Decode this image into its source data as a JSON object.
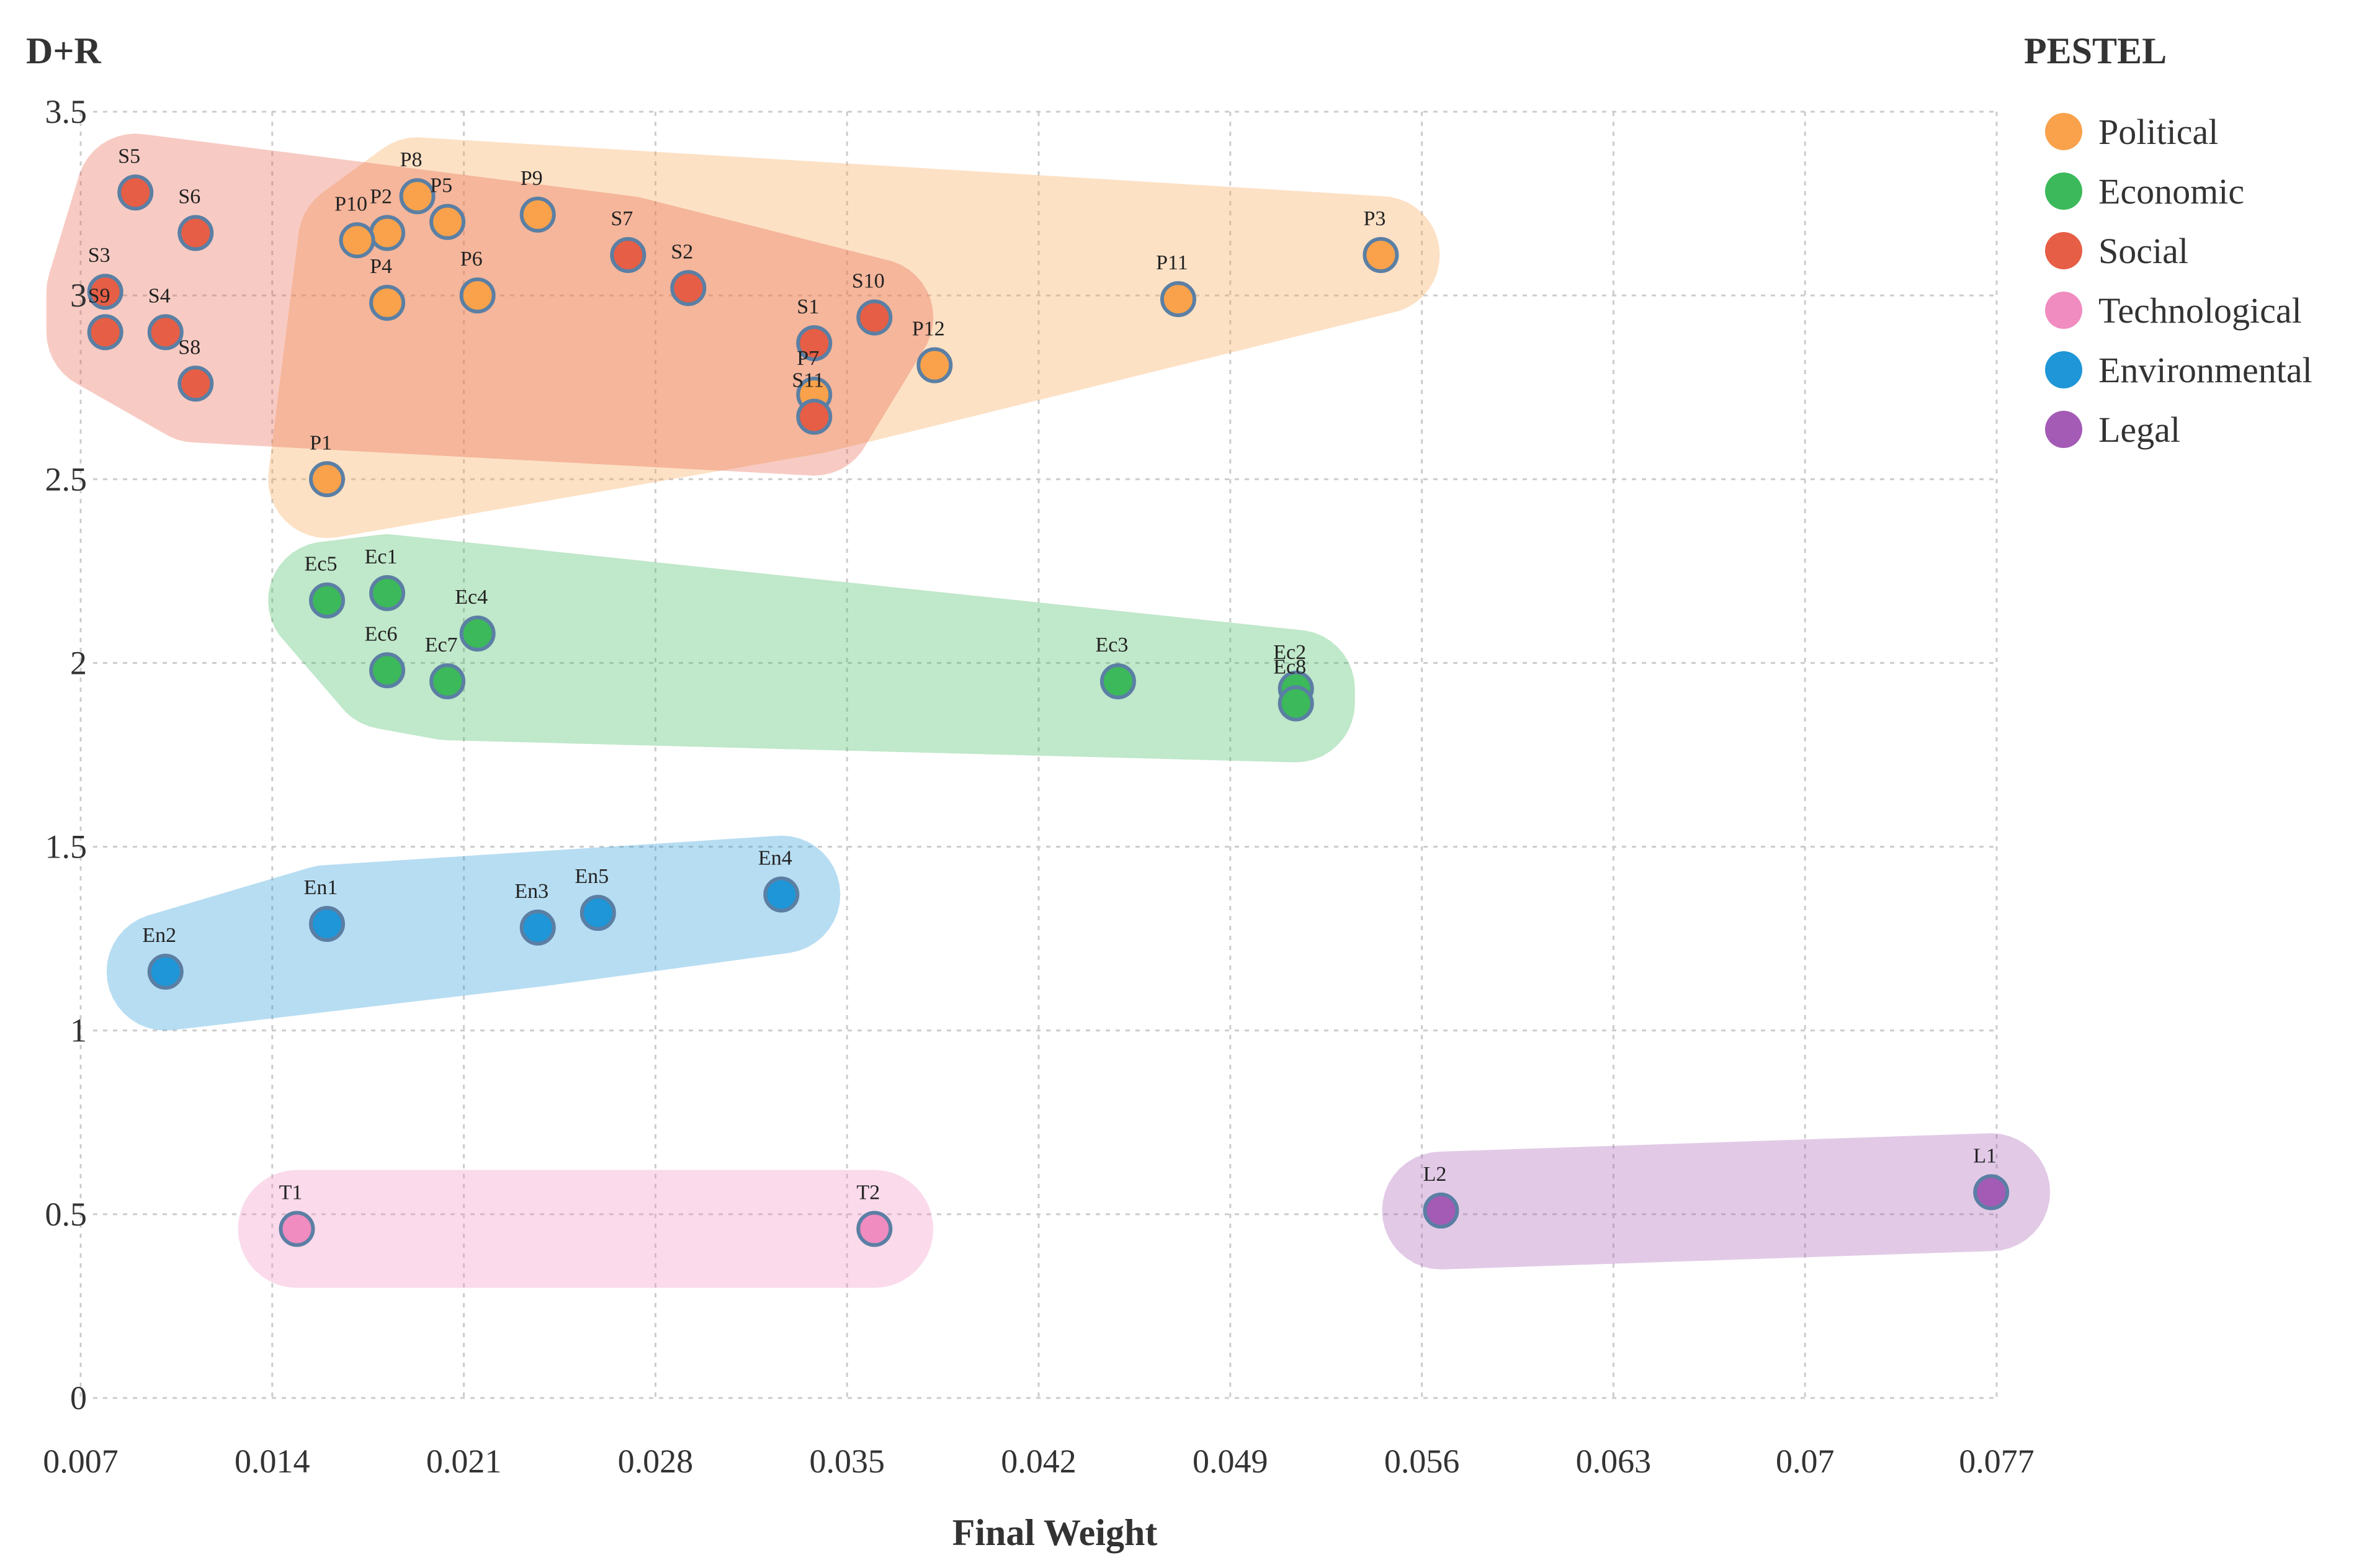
{
  "chart_data": {
    "type": "scatter",
    "xlabel": "Final Weight",
    "ylabel": "D+R",
    "xlim": [
      0.007,
      0.077
    ],
    "ylim": [
      0,
      3.5
    ],
    "x_ticks": [
      "0.007",
      "0.014",
      "0.021",
      "0.028",
      "0.035",
      "0.042",
      "0.049",
      "0.056",
      "0.063",
      "0.07",
      "0.077"
    ],
    "y_ticks": [
      "0",
      "0.5",
      "1",
      "1.5",
      "2",
      "2.5",
      "3",
      "3.5"
    ],
    "grid": true,
    "legend": {
      "title": "PESTEL",
      "position": "right",
      "entries": [
        "Political",
        "Economic",
        "Social",
        "Technological",
        "Environmental",
        "Legal"
      ]
    },
    "series": [
      {
        "name": "Political",
        "color": "#F9A24B",
        "points": [
          {
            "label": "P1",
            "x": 0.016,
            "y": 2.5
          },
          {
            "label": "P2",
            "x": 0.0182,
            "y": 3.17
          },
          {
            "label": "P3",
            "x": 0.0545,
            "y": 3.11
          },
          {
            "label": "P4",
            "x": 0.0182,
            "y": 2.98
          },
          {
            "label": "P5",
            "x": 0.0204,
            "y": 3.2
          },
          {
            "label": "P6",
            "x": 0.0215,
            "y": 3.0
          },
          {
            "label": "P7",
            "x": 0.0338,
            "y": 2.73
          },
          {
            "label": "P8",
            "x": 0.0193,
            "y": 3.27
          },
          {
            "label": "P9",
            "x": 0.0237,
            "y": 3.22
          },
          {
            "label": "P10",
            "x": 0.0171,
            "y": 3.15
          },
          {
            "label": "P11",
            "x": 0.0471,
            "y": 2.99
          },
          {
            "label": "P12",
            "x": 0.0382,
            "y": 2.81
          }
        ]
      },
      {
        "name": "Economic",
        "color": "#3CB95A",
        "points": [
          {
            "label": "Ec1",
            "x": 0.0182,
            "y": 2.19
          },
          {
            "label": "Ec2",
            "x": 0.0514,
            "y": 1.93
          },
          {
            "label": "Ec3",
            "x": 0.0449,
            "y": 1.95
          },
          {
            "label": "Ec4",
            "x": 0.0215,
            "y": 2.08
          },
          {
            "label": "Ec5",
            "x": 0.016,
            "y": 2.17
          },
          {
            "label": "Ec6",
            "x": 0.0182,
            "y": 1.98
          },
          {
            "label": "Ec7",
            "x": 0.0204,
            "y": 1.95
          },
          {
            "label": "Ec8",
            "x": 0.0514,
            "y": 1.89
          }
        ]
      },
      {
        "name": "Social",
        "color": "#E65E45",
        "points": [
          {
            "label": "S1",
            "x": 0.0338,
            "y": 2.87
          },
          {
            "label": "S2",
            "x": 0.0292,
            "y": 3.02
          },
          {
            "label": "S3",
            "x": 0.0079,
            "y": 3.01
          },
          {
            "label": "S4",
            "x": 0.0101,
            "y": 2.9
          },
          {
            "label": "S5",
            "x": 0.009,
            "y": 3.28
          },
          {
            "label": "S6",
            "x": 0.0112,
            "y": 3.17
          },
          {
            "label": "S7",
            "x": 0.027,
            "y": 3.11
          },
          {
            "label": "S8",
            "x": 0.0112,
            "y": 2.76
          },
          {
            "label": "S9",
            "x": 0.0079,
            "y": 2.9
          },
          {
            "label": "S10",
            "x": 0.036,
            "y": 2.94
          },
          {
            "label": "S11",
            "x": 0.0338,
            "y": 2.67
          }
        ]
      },
      {
        "name": "Technological",
        "color": "#F08CC0",
        "points": [
          {
            "label": "T1",
            "x": 0.0149,
            "y": 0.46
          },
          {
            "label": "T2",
            "x": 0.036,
            "y": 0.46
          }
        ]
      },
      {
        "name": "Environmental",
        "color": "#1E96D7",
        "points": [
          {
            "label": "En1",
            "x": 0.016,
            "y": 1.29
          },
          {
            "label": "En2",
            "x": 0.0101,
            "y": 1.16
          },
          {
            "label": "En3",
            "x": 0.0237,
            "y": 1.28
          },
          {
            "label": "En4",
            "x": 0.0326,
            "y": 1.37
          },
          {
            "label": "En5",
            "x": 0.0259,
            "y": 1.32
          }
        ]
      },
      {
        "name": "Legal",
        "color": "#A45BB5",
        "points": [
          {
            "label": "L1",
            "x": 0.0768,
            "y": 0.56
          },
          {
            "label": "L2",
            "x": 0.0567,
            "y": 0.51
          }
        ]
      }
    ]
  }
}
